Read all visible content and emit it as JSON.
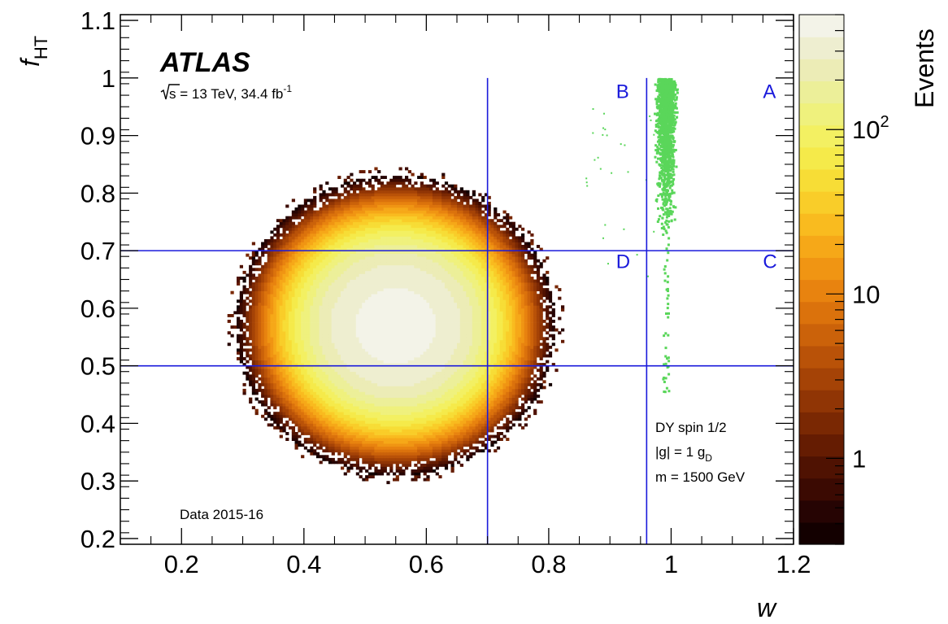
{
  "chart_data": {
    "type": "heatmap",
    "experiment_label": "ATLAS",
    "luminosity_label": {
      "energy": "s",
      "rest": " = 13 TeV, 34.4 fb",
      "exponent": "-1"
    },
    "data_label": "Data 2015-16",
    "signal_label": {
      "line1": "DY spin 1/2",
      "line2": "|g| = 1 g",
      "line2_sub": "D",
      "line3": "m = 1500 GeV"
    },
    "xlabel": "w",
    "ylabel": "f",
    "ylabel_sub": "HT",
    "zlabel": "Events",
    "xlim": [
      0.1,
      1.2
    ],
    "ylim": [
      0.19,
      1.11
    ],
    "x_ticks": [
      "0.2",
      "0.4",
      "0.6",
      "0.8",
      "1",
      "1.2"
    ],
    "x_tick_values": [
      0.2,
      0.4,
      0.6,
      0.8,
      1.0,
      1.2
    ],
    "y_ticks": [
      "0.2",
      "0.3",
      "0.4",
      "0.5",
      "0.6",
      "0.7",
      "0.8",
      "0.9",
      "1",
      "1.1"
    ],
    "y_tick_values": [
      0.2,
      0.3,
      0.4,
      0.5,
      0.6,
      0.7,
      0.8,
      0.9,
      1.0,
      1.1
    ],
    "z_scale": "log",
    "z_range": [
      0.3,
      500
    ],
    "z_ticks": [
      {
        "value": 1,
        "label": "1"
      },
      {
        "value": 10,
        "label": "10"
      },
      {
        "value": 100,
        "label": "10",
        "exponent": "2"
      }
    ],
    "cut_lines": {
      "vertical_w": [
        0.7,
        0.96
      ],
      "horizontal_fHT": [
        0.5,
        0.7
      ],
      "color": "#1a1adb"
    },
    "regions": [
      {
        "label": "A",
        "w": 1.15,
        "fHT": 0.965
      },
      {
        "label": "B",
        "w": 0.91,
        "fHT": 0.965
      },
      {
        "label": "C",
        "w": 1.15,
        "fHT": 0.67
      },
      {
        "label": "D",
        "w": 0.91,
        "fHT": 0.67
      }
    ],
    "data_distribution": {
      "description_center_w": 0.55,
      "center_fHT": 0.57,
      "peak_events": 400
    },
    "signal_distribution": {
      "center_w": 0.99,
      "fHT_range": [
        0.45,
        1.0
      ],
      "color": "#5ad65a"
    },
    "colors": {
      "palette": [
        "#130000",
        "#260403",
        "#3b0a02",
        "#4f1202",
        "#651c02",
        "#7a2803",
        "#903505",
        "#a54306",
        "#b95208",
        "#cb620a",
        "#db720c",
        "#e8830f",
        "#f09513",
        "#f6a818",
        "#f9bb1f",
        "#f9cd29",
        "#f7dd36",
        "#f5ea4a",
        "#f3f062",
        "#eff17d",
        "#ecef99",
        "#ececb6",
        "#eeeed0",
        "#f3f3e8"
      ]
    }
  }
}
